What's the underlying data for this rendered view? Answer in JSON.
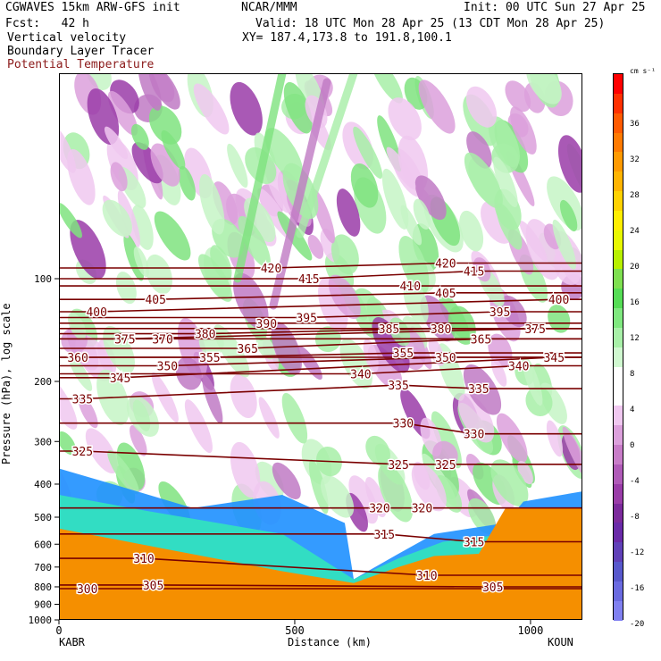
{
  "header": {
    "line1_left": "CGWAVES 15km ARW-GFS init",
    "line1_mid": "NCAR/MMM",
    "line1_right": "Init: 00 UTC Sun 27 Apr 25",
    "line2_left": "Fcst:   42 h",
    "line2_right": "Valid: 18 UTC Mon 28 Apr 25 (13 CDT Mon 28 Apr 25)",
    "field1": "Vertical velocity",
    "field2": "Boundary Layer Tracer",
    "field3": "Potential Temperature",
    "xy": "XY= 187.4,173.8 to 191.8,100.1"
  },
  "colors": {
    "theta_contour": "#7a0000",
    "field3_text": "#8b1a1a",
    "terrain": "#f58f00"
  },
  "chart_data": {
    "type": "heatmap",
    "ylabel": "Pressure (hPa), log scale",
    "xlabel": "Distance (km)",
    "yscale": "log",
    "ylim": [
      1000,
      25
    ],
    "xlim": [
      0,
      1110
    ],
    "y_ticks": [
      "100",
      "200",
      "300",
      "400",
      "500",
      "600",
      "700",
      "800",
      "900",
      "1000"
    ],
    "y_tick_values": [
      100,
      200,
      300,
      400,
      500,
      600,
      700,
      800,
      900,
      1000
    ],
    "x_ticks": [
      "0",
      "500",
      "1000"
    ],
    "x_tick_values": [
      0,
      500,
      1000
    ],
    "x_endpoints": {
      "left": "KABR",
      "right": "KOUN"
    },
    "colorbar": {
      "unit": "cm s⁻¹",
      "tick_labels": [
        "36",
        "32",
        "28",
        "24",
        "20",
        "16",
        "12",
        "8",
        "4",
        "0",
        "-4",
        "-8",
        "-12",
        "-16",
        "-20"
      ],
      "colors": [
        "#ff0000",
        "#ff3000",
        "#ff5a00",
        "#ff7a00",
        "#ff9a00",
        "#ffb400",
        "#ffd200",
        "#ffee00",
        "#e8f800",
        "#b8f000",
        "#7ee050",
        "#55dd55",
        "#7fe87f",
        "#a8f0a8",
        "#d0f8d0",
        "#ffffff",
        "#ffffff",
        "#f0c8f0",
        "#dca0dc",
        "#c87cc8",
        "#b05ab8",
        "#9a3ca8",
        "#7c2a9c",
        "#6a2aa8",
        "#6040b8",
        "#5858cc",
        "#6a6ae0",
        "#8080f0"
      ]
    },
    "theta_contours": [
      {
        "label": "300",
        "p": 810,
        "x": 60
      },
      {
        "label": "305",
        "p": 790,
        "x": 200
      },
      {
        "label": "305",
        "p": 800,
        "x": 920
      },
      {
        "label": "310",
        "p": 660,
        "x": 180
      },
      {
        "label": "310",
        "p": 740,
        "x": 780
      },
      {
        "label": "315",
        "p": 560,
        "x": 690
      },
      {
        "label": "315",
        "p": 590,
        "x": 880
      },
      {
        "label": "320",
        "p": 470,
        "x": 680
      },
      {
        "label": "320",
        "p": 470,
        "x": 770
      },
      {
        "label": "325",
        "p": 320,
        "x": 50
      },
      {
        "label": "325",
        "p": 350,
        "x": 720
      },
      {
        "label": "325",
        "p": 350,
        "x": 820
      },
      {
        "label": "330",
        "p": 265,
        "x": 730
      },
      {
        "label": "330",
        "p": 285,
        "x": 880
      },
      {
        "label": "335",
        "p": 225,
        "x": 50
      },
      {
        "label": "335",
        "p": 205,
        "x": 720
      },
      {
        "label": "335",
        "p": 210,
        "x": 890
      },
      {
        "label": "340",
        "p": 190,
        "x": 640
      },
      {
        "label": "340",
        "p": 180,
        "x": 975
      },
      {
        "label": "345",
        "p": 195,
        "x": 130
      },
      {
        "label": "345",
        "p": 170,
        "x": 1050
      },
      {
        "label": "350",
        "p": 180,
        "x": 230
      },
      {
        "label": "350",
        "p": 170,
        "x": 820
      },
      {
        "label": "355",
        "p": 170,
        "x": 320
      },
      {
        "label": "355",
        "p": 165,
        "x": 730
      },
      {
        "label": "360",
        "p": 170,
        "x": 40
      },
      {
        "label": "365",
        "p": 160,
        "x": 400
      },
      {
        "label": "365",
        "p": 150,
        "x": 895
      },
      {
        "label": "370",
        "p": 150,
        "x": 220
      },
      {
        "label": "375",
        "p": 150,
        "x": 140
      },
      {
        "label": "375",
        "p": 140,
        "x": 1010
      },
      {
        "label": "380",
        "p": 145,
        "x": 310
      },
      {
        "label": "380",
        "p": 140,
        "x": 810
      },
      {
        "label": "385",
        "p": 140,
        "x": 700
      },
      {
        "label": "390",
        "p": 135,
        "x": 440
      },
      {
        "label": "395",
        "p": 130,
        "x": 525
      },
      {
        "label": "395",
        "p": 125,
        "x": 935
      },
      {
        "label": "400",
        "p": 125,
        "x": 80
      },
      {
        "label": "400",
        "p": 115,
        "x": 1060
      },
      {
        "label": "405",
        "p": 115,
        "x": 205
      },
      {
        "label": "405",
        "p": 110,
        "x": 820
      },
      {
        "label": "410",
        "p": 105,
        "x": 745
      },
      {
        "label": "415",
        "p": 100,
        "x": 530
      },
      {
        "label": "415",
        "p": 95,
        "x": 880
      },
      {
        "label": "420",
        "p": 93,
        "x": 450
      },
      {
        "label": "420",
        "p": 90,
        "x": 820
      }
    ]
  }
}
